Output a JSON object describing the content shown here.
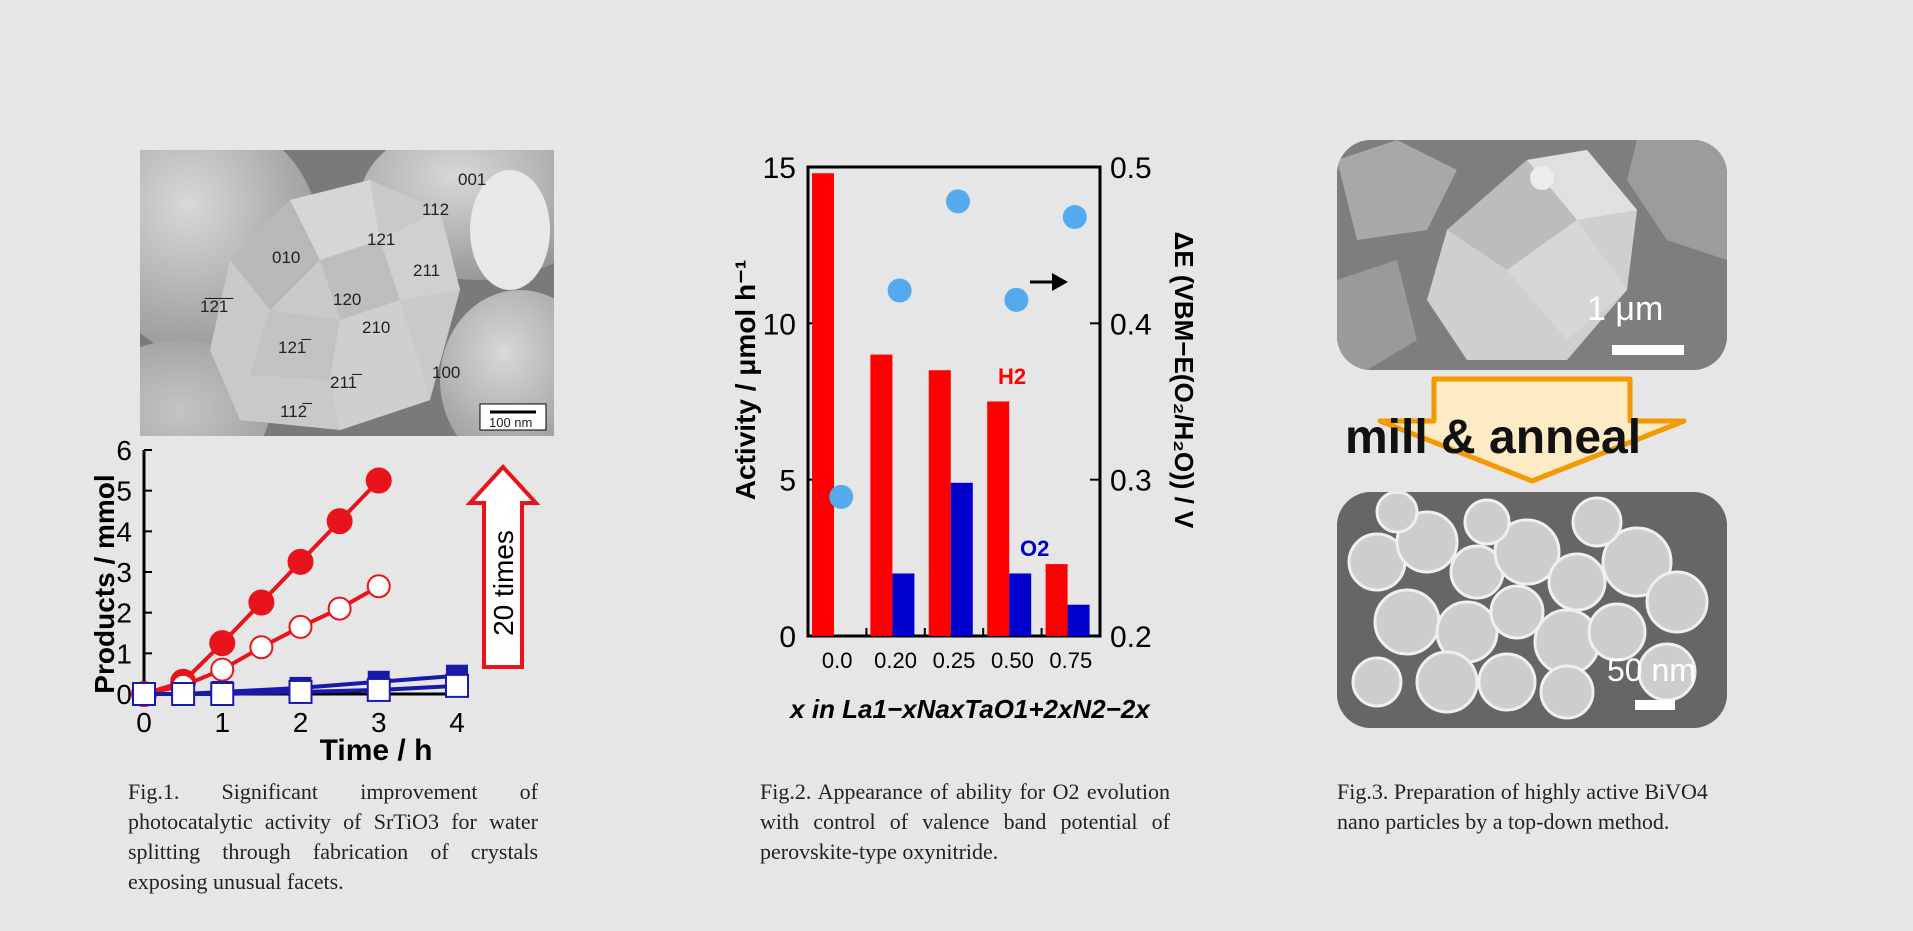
{
  "fig1": {
    "sem": {
      "facet_labels": [
        "001",
        "112",
        "121",
        "010",
        "211",
        "1̅2̅1̅",
        "120",
        "210",
        "121̅",
        "211̅",
        "100",
        "112̅"
      ],
      "scale_label": "100 nm"
    },
    "chart_data": {
      "type": "scatter",
      "xlabel": "Time / h",
      "ylabel": "Products / mmol",
      "xlim": [
        0,
        4
      ],
      "ylim": [
        0,
        6
      ],
      "xticks": [
        "0",
        "1",
        "2",
        "3",
        "4"
      ],
      "yticks": [
        "0",
        "1",
        "2",
        "3",
        "4",
        "5",
        "6"
      ],
      "series": [
        {
          "marker": "filled-circle",
          "color": "#e8141b",
          "x": [
            0,
            0.5,
            1,
            1.5,
            2,
            2.5,
            3
          ],
          "y": [
            0,
            0.3,
            1.25,
            2.25,
            3.25,
            4.25,
            5.25
          ]
        },
        {
          "marker": "open-circle",
          "color": "#e8141b",
          "x": [
            0,
            0.5,
            1,
            1.5,
            2,
            2.5,
            3
          ],
          "y": [
            0,
            0.2,
            0.6,
            1.15,
            1.65,
            2.1,
            2.65
          ]
        },
        {
          "marker": "filled-square",
          "color": "#1a1aaa",
          "x": [
            0,
            0.5,
            1,
            2,
            3,
            4
          ],
          "y": [
            0,
            0,
            0.05,
            0.15,
            0.3,
            0.45
          ]
        },
        {
          "marker": "open-square",
          "color": "#1a1aaa",
          "x": [
            0,
            0.5,
            1,
            2,
            3,
            4
          ],
          "y": [
            0,
            0,
            0,
            0.05,
            0.1,
            0.2
          ]
        }
      ],
      "annotation": "20 times"
    },
    "caption": "Fig.1. Significant improvement of photocatalytic activity of SrTiO3 for water splitting through fabrication of crystals exposing unusual facets."
  },
  "fig2": {
    "chart_data": {
      "type": "bar",
      "categories": [
        "0.0",
        "0.20",
        "0.25",
        "0.50",
        "0.75"
      ],
      "ylabel": "Activity / μmol h⁻¹",
      "ylabel_right": "ΔE (VBM−E(O₂/H₂O)) / V",
      "xlabel": "x in La1−xNaxTaO1+2xN2−2x",
      "ylim": [
        0,
        15
      ],
      "ylim_right": [
        0.2,
        0.5
      ],
      "yticks": [
        "0",
        "5",
        "10",
        "15"
      ],
      "yticks_right": [
        "0.2",
        "0.3",
        "0.4",
        "0.5"
      ],
      "series": [
        {
          "name": "H2",
          "color": "#ff0000",
          "values": [
            14.8,
            9.0,
            8.5,
            7.5,
            2.3
          ]
        },
        {
          "name": "O2",
          "color": "#0000cc",
          "values": [
            0,
            2.0,
            4.9,
            2.0,
            1.0
          ]
        }
      ],
      "points_right": {
        "color": "#55aaee",
        "values": [
          0.289,
          0.421,
          0.478,
          0.415,
          0.468
        ]
      }
    },
    "caption": "Fig.2. Appearance of ability for O2 evolution with control of valence band potential of perovskite-type oxynitride."
  },
  "fig3": {
    "scale_top": "1 μm",
    "process_label": "mill & anneal",
    "scale_bottom": "50 nm",
    "caption": "Fig.3. Preparation of highly active BiVO4 nano particles by a top-down method."
  }
}
